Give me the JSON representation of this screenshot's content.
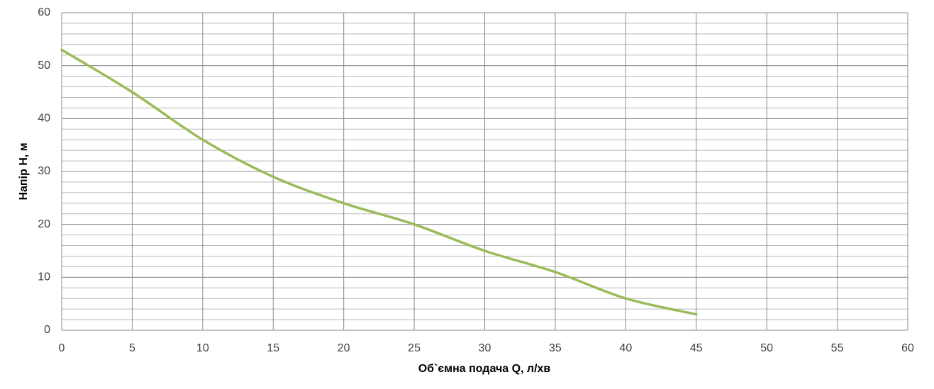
{
  "chart_data": {
    "type": "line",
    "x_label": "Об`ємна подача Q, л/хв",
    "y_label": "Напір H, м",
    "x": [
      0,
      5,
      10,
      15,
      20,
      25,
      30,
      35,
      40,
      45
    ],
    "values": [
      53,
      45,
      36,
      29,
      24,
      20,
      15,
      11,
      6,
      3
    ],
    "color": "#9bbb59",
    "smooth": true,
    "xlim": [
      0,
      60
    ],
    "xticks": [
      0,
      5,
      10,
      15,
      20,
      25,
      30,
      35,
      40,
      45,
      50,
      55,
      60
    ],
    "ylim": [
      0,
      60
    ],
    "yticks": [
      0,
      10,
      20,
      30,
      40,
      50,
      60
    ],
    "grid": true,
    "y_minor_step": 2
  }
}
